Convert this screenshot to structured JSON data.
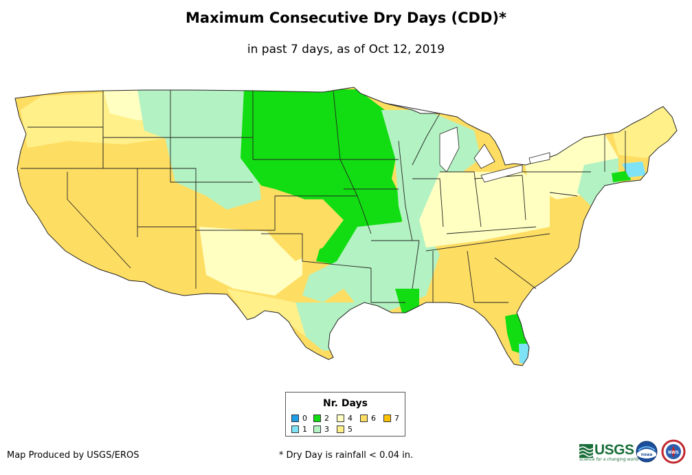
{
  "title": "Maximum Consecutive Dry Days (CDD)*",
  "subtitle": "in past 7 days, as of Oct 12, 2019",
  "legend": {
    "title": "Nr. Days",
    "items": [
      {
        "label": "0",
        "color": "#1f9de6"
      },
      {
        "label": "1",
        "color": "#7fe3f7"
      },
      {
        "label": "2",
        "color": "#12dd12"
      },
      {
        "label": "3",
        "color": "#b3f2c2"
      },
      {
        "label": "4",
        "color": "#ffffc2"
      },
      {
        "label": "5",
        "color": "#fff08a"
      },
      {
        "label": "6",
        "color": "#fedd63"
      },
      {
        "label": "7",
        "color": "#fec302"
      }
    ]
  },
  "credit": "Map Produced by USGS/EROS",
  "footnote": "* Dry Day is rainfall < 0.04 in.",
  "logos": {
    "usgs_text": "USGS",
    "usgs_tagline": "science for a changing world",
    "noaa_text": "noaa",
    "nws_text": "NWS"
  }
}
